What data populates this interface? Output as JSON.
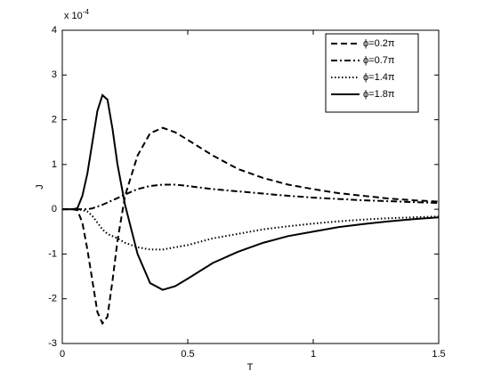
{
  "chart_data": {
    "type": "line",
    "x_label": "T",
    "y_label": "J",
    "y_multiplier": {
      "base": "x 10",
      "exponent": "-4"
    },
    "x": [
      0,
      0.04,
      0.06,
      0.08,
      0.1,
      0.12,
      0.14,
      0.16,
      0.18,
      0.2,
      0.22,
      0.25,
      0.3,
      0.35,
      0.4,
      0.45,
      0.5,
      0.6,
      0.7,
      0.8,
      0.9,
      1.0,
      1.1,
      1.2,
      1.3,
      1.4,
      1.5
    ],
    "series": [
      {
        "name": "ϕ=0.2π",
        "color": "#000000",
        "linestyle": "dashed",
        "values": [
          0,
          0,
          -0.02,
          -0.3,
          -0.9,
          -1.6,
          -2.3,
          -2.55,
          -2.4,
          -1.6,
          -0.7,
          0.3,
          1.2,
          1.7,
          1.82,
          1.72,
          1.55,
          1.2,
          0.9,
          0.7,
          0.55,
          0.45,
          0.36,
          0.3,
          0.24,
          0.2,
          0.17
        ]
      },
      {
        "name": "ϕ=0.7π",
        "color": "#000000",
        "linestyle": "dashdot",
        "values": [
          0,
          0,
          0,
          0,
          0,
          0.02,
          0.06,
          0.1,
          0.15,
          0.2,
          0.25,
          0.33,
          0.45,
          0.52,
          0.55,
          0.55,
          0.52,
          0.45,
          0.4,
          0.35,
          0.3,
          0.26,
          0.23,
          0.2,
          0.18,
          0.16,
          0.14
        ]
      },
      {
        "name": "ϕ=1.4π",
        "color": "#000000",
        "linestyle": "dotted",
        "values": [
          0,
          0,
          0,
          -0.02,
          -0.05,
          -0.15,
          -0.3,
          -0.45,
          -0.55,
          -0.6,
          -0.65,
          -0.75,
          -0.85,
          -0.9,
          -0.9,
          -0.85,
          -0.8,
          -0.65,
          -0.55,
          -0.45,
          -0.38,
          -0.32,
          -0.27,
          -0.23,
          -0.2,
          -0.18,
          -0.16
        ]
      },
      {
        "name": "ϕ=1.8π",
        "color": "#000000",
        "linestyle": "solid",
        "values": [
          0,
          0,
          0.02,
          0.3,
          0.8,
          1.5,
          2.2,
          2.55,
          2.45,
          1.8,
          1.0,
          0.1,
          -1.0,
          -1.65,
          -1.8,
          -1.72,
          -1.55,
          -1.2,
          -0.95,
          -0.75,
          -0.6,
          -0.5,
          -0.4,
          -0.33,
          -0.27,
          -0.22,
          -0.18
        ]
      }
    ],
    "xlim": [
      0,
      1.5
    ],
    "xticks": [
      0,
      0.5,
      1,
      1.5
    ],
    "ylim": [
      -3,
      4
    ],
    "yticks": [
      -3,
      -2,
      -1,
      0,
      1,
      2,
      3,
      4
    ],
    "grid": false,
    "legend": "upper right"
  }
}
